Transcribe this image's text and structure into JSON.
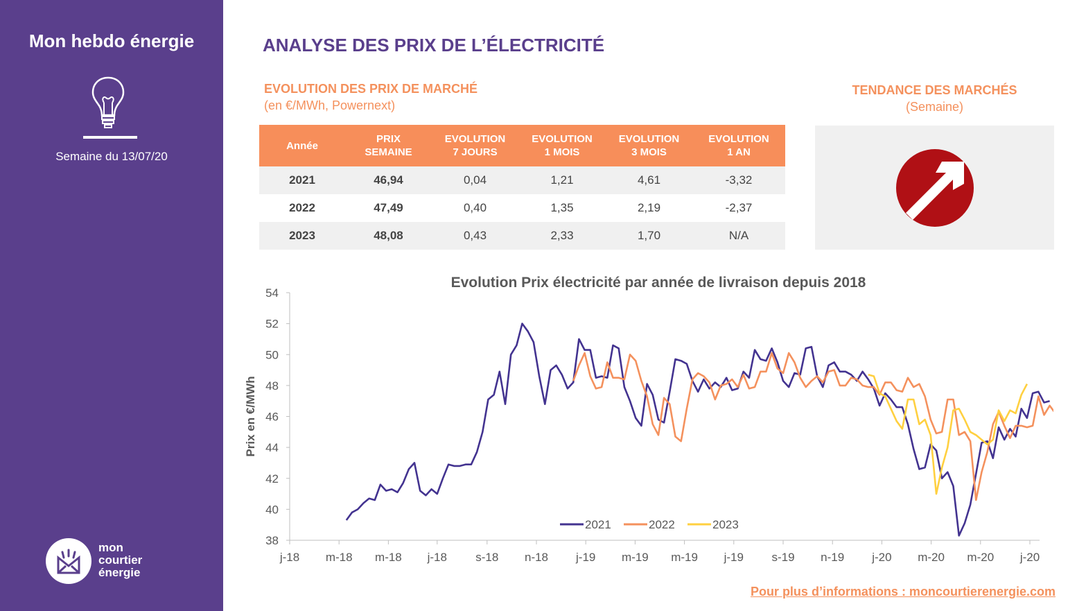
{
  "sidebar": {
    "title": "Mon hebdo énergie",
    "week": "Semaine du 13/07/20",
    "logo": {
      "line1": "mon",
      "line2": "courtier",
      "line3": "énergie",
      "icon": "envelope-icon"
    },
    "icon": "lightbulb-icon",
    "color": "#5a3f8c"
  },
  "main": {
    "title": "ANALYSE DES PRIX DE L’ÉLECTRICITÉ",
    "market_title": "EVOLUTION DES PRIX DE MARCHÉ",
    "market_sub": "(en €/MWh, Powernext)",
    "trend_title": "TENDANCE DES MARCHÉS",
    "trend_sub": "(Semaine)",
    "trend_icon": "arrow-up-right-icon",
    "trend_color": "#b01015",
    "accent": "#f78e5a"
  },
  "table": {
    "headers": [
      {
        "l1": "Année",
        "l2": ""
      },
      {
        "l1": "PRIX",
        "l2": "SEMAINE"
      },
      {
        "l1": "EVOLUTION",
        "l2": "7 JOURS"
      },
      {
        "l1": "EVOLUTION",
        "l2": "1 MOIS"
      },
      {
        "l1": "EVOLUTION",
        "l2": "3 MOIS"
      },
      {
        "l1": "EVOLUTION",
        "l2": "1 AN"
      }
    ],
    "rows": [
      [
        "2021",
        "46,94",
        "0,04",
        "1,21",
        "4,61",
        "-3,32"
      ],
      [
        "2022",
        "47,49",
        "0,40",
        "1,35",
        "2,19",
        "-2,37"
      ],
      [
        "2023",
        "48,08",
        "0,43",
        "2,33",
        "1,70",
        "N/A"
      ]
    ]
  },
  "chart_data": {
    "type": "line",
    "title": "Evolution Prix électricité par année de livraison depuis 2018",
    "xlabel": "",
    "ylabel": "Prix en €/MWh",
    "ylim": [
      38,
      54
    ],
    "yticks": [
      "38",
      "40",
      "42",
      "44",
      "46",
      "48",
      "50",
      "52",
      "54"
    ],
    "xticks": [
      "j-18",
      "m-18",
      "m-18",
      "j-18",
      "s-18",
      "n-18",
      "j-19",
      "m-19",
      "m-19",
      "j-19",
      "s-19",
      "n-19",
      "j-20",
      "m-20",
      "m-20",
      "j-20"
    ],
    "x_start": "2018-01",
    "x_end": "2020-07",
    "x_unit": "week",
    "grid": false,
    "legend": "bottom",
    "series": [
      {
        "name": "2021",
        "color": "#433390",
        "start_week": 10,
        "values": [
          39.3,
          39.8,
          40.0,
          40.4,
          40.7,
          40.6,
          41.6,
          41.2,
          41.3,
          41.1,
          41.7,
          42.6,
          43.0,
          41.2,
          40.9,
          41.3,
          41.0,
          42.0,
          42.9,
          42.8,
          42.8,
          42.9,
          42.9,
          43.7,
          45.0,
          47.1,
          47.4,
          48.9,
          46.8,
          50.0,
          50.6,
          52.0,
          51.5,
          50.8,
          48.6,
          46.8,
          49.0,
          49.3,
          48.7,
          47.8,
          48.2,
          51.0,
          50.3,
          50.3,
          48.5,
          48.6,
          48.5,
          50.6,
          50.4,
          47.9,
          47.0,
          45.9,
          45.4,
          48.1,
          47.4,
          45.8,
          45.6,
          47.6,
          49.7,
          49.6,
          49.4,
          48.3,
          47.6,
          48.4,
          47.8,
          48.2,
          47.9,
          48.5,
          47.7,
          47.8,
          48.9,
          48.5,
          50.3,
          49.7,
          49.6,
          50.4,
          49.5,
          48.3,
          47.9,
          48.8,
          48.7,
          50.4,
          50.5,
          48.6,
          47.9,
          49.3,
          49.5,
          48.9,
          48.9,
          48.7,
          48.3,
          48.9,
          48.4,
          47.8,
          46.7,
          47.5,
          47.1,
          46.6,
          46.6,
          45.5,
          43.9,
          42.6,
          42.7,
          44.2,
          43.8,
          42.0,
          42.4,
          41.5,
          38.3,
          39.1,
          40.3,
          42.3,
          44.3,
          44.4,
          43.3,
          45.3,
          44.5,
          45.2,
          44.7,
          46.5,
          45.9,
          47.5,
          47.6,
          46.9,
          47.0
        ]
      },
      {
        "name": "2022",
        "color": "#f4915d",
        "start_week": 50,
        "values": [
          48.3,
          49.3,
          50.1,
          48.6,
          47.8,
          47.9,
          49.5,
          48.5,
          48.5,
          48.4,
          50.0,
          49.6,
          48.3,
          47.3,
          45.5,
          44.8,
          47.2,
          46.8,
          44.7,
          44.4,
          46.5,
          48.4,
          48.8,
          48.6,
          48.2,
          47.1,
          48.0,
          48.1,
          48.4,
          47.9,
          48.7,
          47.8,
          47.9,
          48.9,
          48.9,
          50.1,
          49.1,
          48.8,
          50.1,
          49.5,
          48.5,
          47.9,
          48.3,
          48.6,
          48.2,
          48.9,
          49.0,
          48.0,
          48.0,
          48.5,
          48.4,
          48.0,
          47.9,
          47.9,
          47.4,
          48.2,
          48.2,
          47.7,
          47.6,
          48.5,
          47.9,
          48.1,
          47.3,
          45.8,
          44.9,
          45.0,
          47.1,
          47.1,
          44.8,
          45.0,
          44.4,
          40.6,
          42.4,
          43.7,
          45.5,
          46.3,
          45.4,
          44.6,
          45.4,
          45.4,
          45.3,
          45.4,
          47.3,
          46.1,
          46.7,
          46.2,
          47.0,
          47.5
        ]
      },
      {
        "name": "2023",
        "color": "#ffd040",
        "start_week": 102,
        "values": [
          48.7,
          48.6,
          47.5,
          47.3,
          46.5,
          45.7,
          45.2,
          47.1,
          47.1,
          45.5,
          45.8,
          44.8,
          41.0,
          42.7,
          44.0,
          46.4,
          46.5,
          45.8,
          45.0,
          44.8,
          44.5,
          44.2,
          44.5,
          46.4,
          45.7,
          46.4,
          46.2,
          47.4,
          48.1
        ]
      }
    ]
  },
  "footer": {
    "text": "Pour plus d’informations : moncourtierenergie.com"
  }
}
